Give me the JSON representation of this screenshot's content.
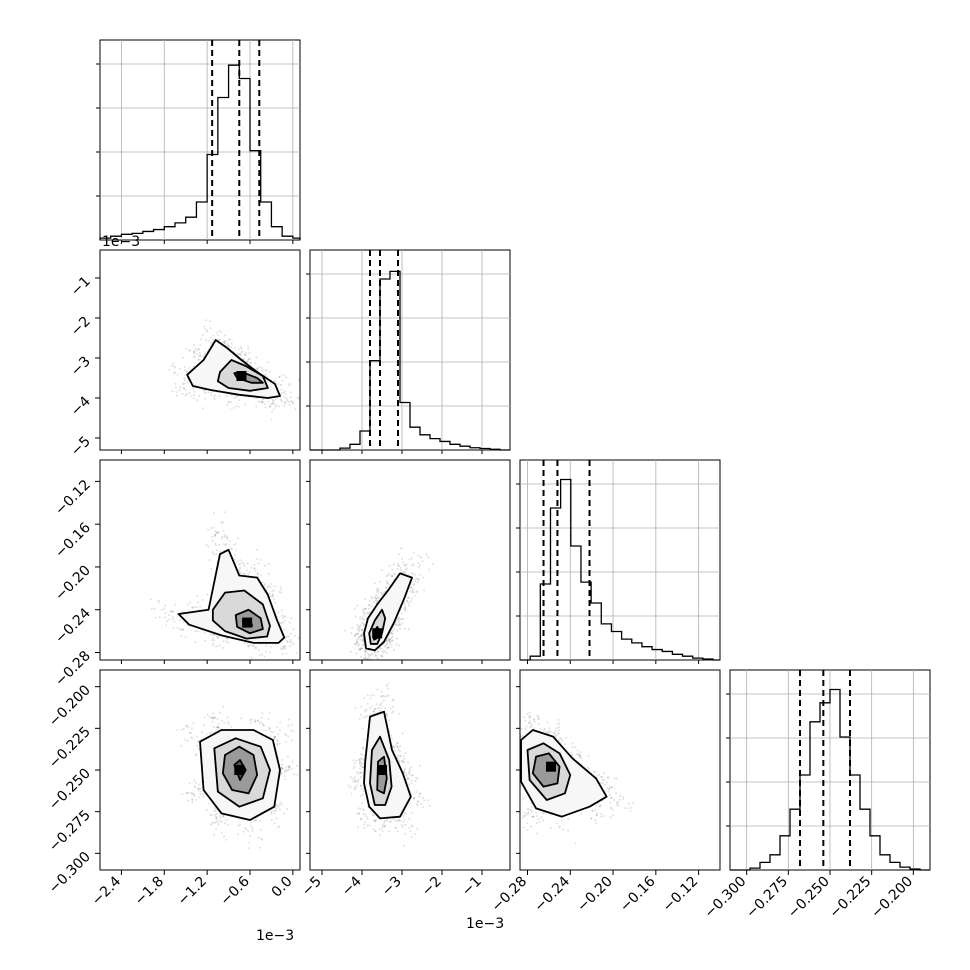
{
  "chart_data": {
    "type": "corner",
    "grid": true,
    "parameters": 4,
    "offset_texts": {
      "x0": "1e−3",
      "x1": "1e−3",
      "y1": "1e−3"
    },
    "x_ticks": [
      [
        "−2.4",
        "−1.8",
        "−1.2",
        "−0.6",
        "0.0"
      ],
      [
        "−5",
        "−4",
        "−3",
        "−2",
        "−1"
      ],
      [
        "−0.28",
        "−0.24",
        "−0.20",
        "−0.16",
        "−0.12"
      ],
      [
        "−0.300",
        "−0.275",
        "−0.250",
        "−0.225",
        "−0.200"
      ]
    ],
    "y_ticks": {
      "row1": [
        "−1",
        "−2",
        "−3",
        "−4",
        "−5"
      ],
      "row2": [
        "−0.12",
        "−0.16",
        "−0.20",
        "−0.24",
        "−0.28"
      ],
      "row3": [
        "−0.200",
        "−0.225",
        "−0.250",
        "−0.275",
        "−0.300"
      ]
    },
    "parameter_ranges": [
      [
        -2.7,
        0.1
      ],
      [
        -5.3,
        -0.3
      ],
      [
        -0.287,
        -0.1
      ],
      [
        -0.31,
        -0.19
      ]
    ],
    "histograms": [
      {
        "param": 0,
        "edges": [
          -2.7,
          -2.55,
          -2.4,
          -2.25,
          -2.1,
          -1.95,
          -1.8,
          -1.65,
          -1.5,
          -1.35,
          -1.2,
          -1.05,
          -0.9,
          -0.75,
          -0.6,
          -0.45,
          -0.3,
          -0.15,
          0.0,
          0.1
        ],
        "counts": [
          0.01,
          0.02,
          0.03,
          0.035,
          0.045,
          0.055,
          0.07,
          0.09,
          0.12,
          0.2,
          0.45,
          0.75,
          0.92,
          0.85,
          0.47,
          0.2,
          0.07,
          0.02,
          0.01
        ],
        "quantiles": [
          -1.13,
          -0.75,
          -0.47
        ]
      },
      {
        "param": 1,
        "edges": [
          -5.3,
          -5.05,
          -4.8,
          -4.55,
          -4.3,
          -4.05,
          -3.8,
          -3.55,
          -3.3,
          -3.05,
          -2.8,
          -2.55,
          -2.3,
          -2.05,
          -1.8,
          -1.55,
          -1.3,
          -1.05,
          -0.8,
          -0.55,
          -0.3
        ],
        "counts": [
          0.0,
          0.0,
          0.0,
          0.01,
          0.03,
          0.1,
          0.47,
          0.9,
          0.94,
          0.25,
          0.12,
          0.08,
          0.06,
          0.045,
          0.03,
          0.02,
          0.012,
          0.008,
          0.004,
          0.0
        ],
        "quantiles": [
          -3.8,
          -3.55,
          -3.1
        ]
      },
      {
        "param": 2,
        "edges": [
          -0.287,
          -0.2775,
          -0.268,
          -0.2585,
          -0.249,
          -0.2395,
          -0.23,
          -0.2205,
          -0.211,
          -0.2015,
          -0.192,
          -0.1825,
          -0.173,
          -0.1635,
          -0.154,
          -0.1445,
          -0.135,
          -0.1255,
          -0.116,
          -0.1065,
          -0.1
        ],
        "counts": [
          0.0,
          0.02,
          0.4,
          0.8,
          0.95,
          0.6,
          0.41,
          0.3,
          0.19,
          0.15,
          0.11,
          0.09,
          0.07,
          0.055,
          0.045,
          0.03,
          0.02,
          0.01,
          0.005,
          0.0
        ],
        "quantiles": [
          -0.265,
          -0.252,
          -0.222
        ]
      },
      {
        "param": 3,
        "edges": [
          -0.31,
          -0.304,
          -0.298,
          -0.292,
          -0.286,
          -0.28,
          -0.274,
          -0.268,
          -0.262,
          -0.256,
          -0.25,
          -0.244,
          -0.238,
          -0.232,
          -0.226,
          -0.22,
          -0.214,
          -0.208,
          -0.202,
          -0.196,
          -0.19
        ],
        "counts": [
          0.0,
          0.0,
          0.01,
          0.04,
          0.08,
          0.18,
          0.32,
          0.5,
          0.78,
          0.88,
          0.95,
          0.7,
          0.5,
          0.32,
          0.18,
          0.08,
          0.04,
          0.015,
          0.005,
          0.0
        ],
        "quantiles": [
          -0.268,
          -0.254,
          -0.238
        ]
      }
    ],
    "pairs": [
      {
        "x": 0,
        "y": 1,
        "center": [
          -0.72,
          -3.45
        ],
        "contours": [
          [
            [
              -1.48,
              -3.42
            ],
            [
              -1.25,
              -3.05
            ],
            [
              -1.08,
              -2.55
            ],
            [
              -0.92,
              -2.75
            ],
            [
              -0.72,
              -3.05
            ],
            [
              -0.5,
              -3.35
            ],
            [
              -0.25,
              -3.65
            ],
            [
              -0.18,
              -3.95
            ],
            [
              -0.35,
              -4.0
            ],
            [
              -0.75,
              -3.92
            ],
            [
              -1.15,
              -3.8
            ],
            [
              -1.4,
              -3.7
            ]
          ],
          [
            [
              -1.02,
              -3.35
            ],
            [
              -0.86,
              -3.05
            ],
            [
              -0.66,
              -3.2
            ],
            [
              -0.42,
              -3.45
            ],
            [
              -0.35,
              -3.75
            ],
            [
              -0.6,
              -3.82
            ],
            [
              -0.9,
              -3.75
            ],
            [
              -1.05,
              -3.58
            ]
          ],
          [
            [
              -0.82,
              -3.38
            ],
            [
              -0.7,
              -3.36
            ],
            [
              -0.5,
              -3.5
            ],
            [
              -0.42,
              -3.62
            ],
            [
              -0.58,
              -3.62
            ],
            [
              -0.78,
              -3.5
            ]
          ]
        ]
      },
      {
        "x": 0,
        "y": 2,
        "center": [
          -0.64,
          -0.252
        ],
        "contours": [
          [
            [
              -1.6,
              -0.244
            ],
            [
              -1.18,
              -0.24
            ],
            [
              -1.02,
              -0.188
            ],
            [
              -0.9,
              -0.184
            ],
            [
              -0.75,
              -0.208
            ],
            [
              -0.5,
              -0.21
            ],
            [
              -0.35,
              -0.226
            ],
            [
              -0.22,
              -0.25
            ],
            [
              -0.12,
              -0.266
            ],
            [
              -0.2,
              -0.271
            ],
            [
              -0.55,
              -0.271
            ],
            [
              -1.0,
              -0.264
            ],
            [
              -1.45,
              -0.254
            ]
          ],
          [
            [
              -1.12,
              -0.24
            ],
            [
              -0.95,
              -0.224
            ],
            [
              -0.68,
              -0.222
            ],
            [
              -0.42,
              -0.235
            ],
            [
              -0.32,
              -0.255
            ],
            [
              -0.36,
              -0.265
            ],
            [
              -0.65,
              -0.267
            ],
            [
              -0.95,
              -0.26
            ],
            [
              -1.12,
              -0.25
            ]
          ],
          [
            [
              -0.8,
              -0.245
            ],
            [
              -0.62,
              -0.24
            ],
            [
              -0.45,
              -0.248
            ],
            [
              -0.42,
              -0.258
            ],
            [
              -0.6,
              -0.262
            ],
            [
              -0.78,
              -0.256
            ]
          ],
          [
            [
              -0.7,
              -0.25
            ],
            [
              -0.6,
              -0.249
            ],
            [
              -0.57,
              -0.255
            ],
            [
              -0.68,
              -0.256
            ]
          ]
        ]
      },
      {
        "x": 0,
        "y": 3,
        "center": [
          -0.75,
          -0.25
        ],
        "contours": [
          [
            [
              -1.3,
              -0.233
            ],
            [
              -1.0,
              -0.226
            ],
            [
              -0.55,
              -0.226
            ],
            [
              -0.28,
              -0.232
            ],
            [
              -0.18,
              -0.25
            ],
            [
              -0.26,
              -0.272
            ],
            [
              -0.6,
              -0.28
            ],
            [
              -1.0,
              -0.276
            ],
            [
              -1.25,
              -0.262
            ]
          ],
          [
            [
              -1.1,
              -0.237
            ],
            [
              -0.8,
              -0.231
            ],
            [
              -0.45,
              -0.236
            ],
            [
              -0.32,
              -0.25
            ],
            [
              -0.42,
              -0.267
            ],
            [
              -0.75,
              -0.272
            ],
            [
              -1.05,
              -0.263
            ]
          ],
          [
            [
              -0.95,
              -0.241
            ],
            [
              -0.75,
              -0.236
            ],
            [
              -0.55,
              -0.241
            ],
            [
              -0.5,
              -0.253
            ],
            [
              -0.62,
              -0.264
            ],
            [
              -0.85,
              -0.262
            ],
            [
              -0.98,
              -0.252
            ]
          ],
          [
            [
              -0.82,
              -0.247
            ],
            [
              -0.74,
              -0.244
            ],
            [
              -0.66,
              -0.25
            ],
            [
              -0.74,
              -0.256
            ]
          ]
        ]
      },
      {
        "x": 1,
        "y": 2,
        "center": [
          -3.62,
          -0.262
        ],
        "contours": [
          [
            [
              -3.95,
              -0.262
            ],
            [
              -3.85,
              -0.248
            ],
            [
              -3.6,
              -0.234
            ],
            [
              -3.35,
              -0.222
            ],
            [
              -3.05,
              -0.206
            ],
            [
              -2.75,
              -0.21
            ],
            [
              -2.95,
              -0.23
            ],
            [
              -3.2,
              -0.252
            ],
            [
              -3.45,
              -0.27
            ],
            [
              -3.68,
              -0.278
            ],
            [
              -3.9,
              -0.276
            ]
          ],
          [
            [
              -3.82,
              -0.262
            ],
            [
              -3.68,
              -0.25
            ],
            [
              -3.5,
              -0.24
            ],
            [
              -3.42,
              -0.248
            ],
            [
              -3.5,
              -0.262
            ],
            [
              -3.62,
              -0.272
            ],
            [
              -3.78,
              -0.272
            ]
          ],
          [
            [
              -3.72,
              -0.262
            ],
            [
              -3.62,
              -0.256
            ],
            [
              -3.55,
              -0.26
            ],
            [
              -3.6,
              -0.266
            ],
            [
              -3.7,
              -0.268
            ]
          ]
        ]
      },
      {
        "x": 1,
        "y": 3,
        "center": [
          -3.5,
          -0.25
        ],
        "contours": [
          [
            [
              -3.92,
              -0.245
            ],
            [
              -3.8,
              -0.218
            ],
            [
              -3.45,
              -0.215
            ],
            [
              -3.25,
              -0.238
            ],
            [
              -2.98,
              -0.252
            ],
            [
              -2.78,
              -0.266
            ],
            [
              -3.05,
              -0.278
            ],
            [
              -3.55,
              -0.279
            ],
            [
              -3.82,
              -0.272
            ],
            [
              -3.95,
              -0.258
            ]
          ],
          [
            [
              -3.75,
              -0.238
            ],
            [
              -3.55,
              -0.23
            ],
            [
              -3.32,
              -0.244
            ],
            [
              -3.26,
              -0.26
            ],
            [
              -3.42,
              -0.271
            ],
            [
              -3.68,
              -0.271
            ],
            [
              -3.8,
              -0.258
            ]
          ],
          [
            [
              -3.6,
              -0.245
            ],
            [
              -3.45,
              -0.242
            ],
            [
              -3.38,
              -0.255
            ],
            [
              -3.45,
              -0.264
            ],
            [
              -3.62,
              -0.262
            ]
          ]
        ]
      },
      {
        "x": 2,
        "y": 3,
        "center": [
          -0.258,
          -0.248
        ],
        "contours": [
          [
            [
              -0.286,
              -0.232
            ],
            [
              -0.275,
              -0.226
            ],
            [
              -0.256,
              -0.23
            ],
            [
              -0.238,
              -0.243
            ],
            [
              -0.216,
              -0.255
            ],
            [
              -0.206,
              -0.266
            ],
            [
              -0.222,
              -0.272
            ],
            [
              -0.248,
              -0.278
            ],
            [
              -0.272,
              -0.273
            ],
            [
              -0.286,
              -0.257
            ]
          ],
          [
            [
              -0.28,
              -0.238
            ],
            [
              -0.265,
              -0.234
            ],
            [
              -0.25,
              -0.24
            ],
            [
              -0.24,
              -0.253
            ],
            [
              -0.245,
              -0.264
            ],
            [
              -0.262,
              -0.268
            ],
            [
              -0.278,
              -0.256
            ]
          ],
          [
            [
              -0.272,
              -0.242
            ],
            [
              -0.26,
              -0.24
            ],
            [
              -0.25,
              -0.248
            ],
            [
              -0.252,
              -0.258
            ],
            [
              -0.265,
              -0.26
            ],
            [
              -0.275,
              -0.252
            ]
          ]
        ]
      }
    ]
  }
}
